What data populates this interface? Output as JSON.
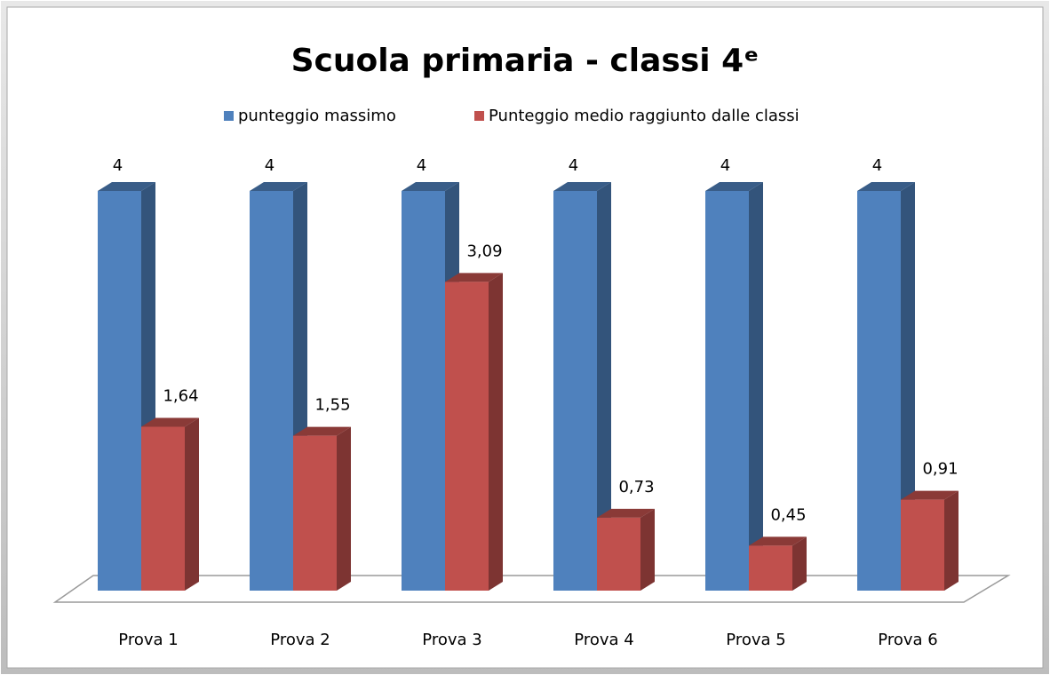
{
  "chart_data": {
    "type": "bar3d",
    "title": "Scuola primaria - classi 4ᵉ",
    "categories": [
      "Prova 1",
      "Prova 2",
      "Prova 3",
      "Prova 4",
      "Prova 5",
      "Prova 6"
    ],
    "series": [
      {
        "name": "punteggio massimo",
        "color": "#4f81bd",
        "values": [
          4,
          4,
          4,
          4,
          4,
          4
        ],
        "value_labels": [
          "4",
          "4",
          "4",
          "4",
          "4",
          "4"
        ]
      },
      {
        "name": "Punteggio medio raggiunto dalle classi",
        "color": "#c0504d",
        "values": [
          1.64,
          1.55,
          3.09,
          0.73,
          0.45,
          0.91
        ],
        "value_labels": [
          "1,64",
          "1,55",
          "3,09",
          "0,73",
          "0,45",
          "0,91"
        ]
      }
    ],
    "legend": "top"
  }
}
